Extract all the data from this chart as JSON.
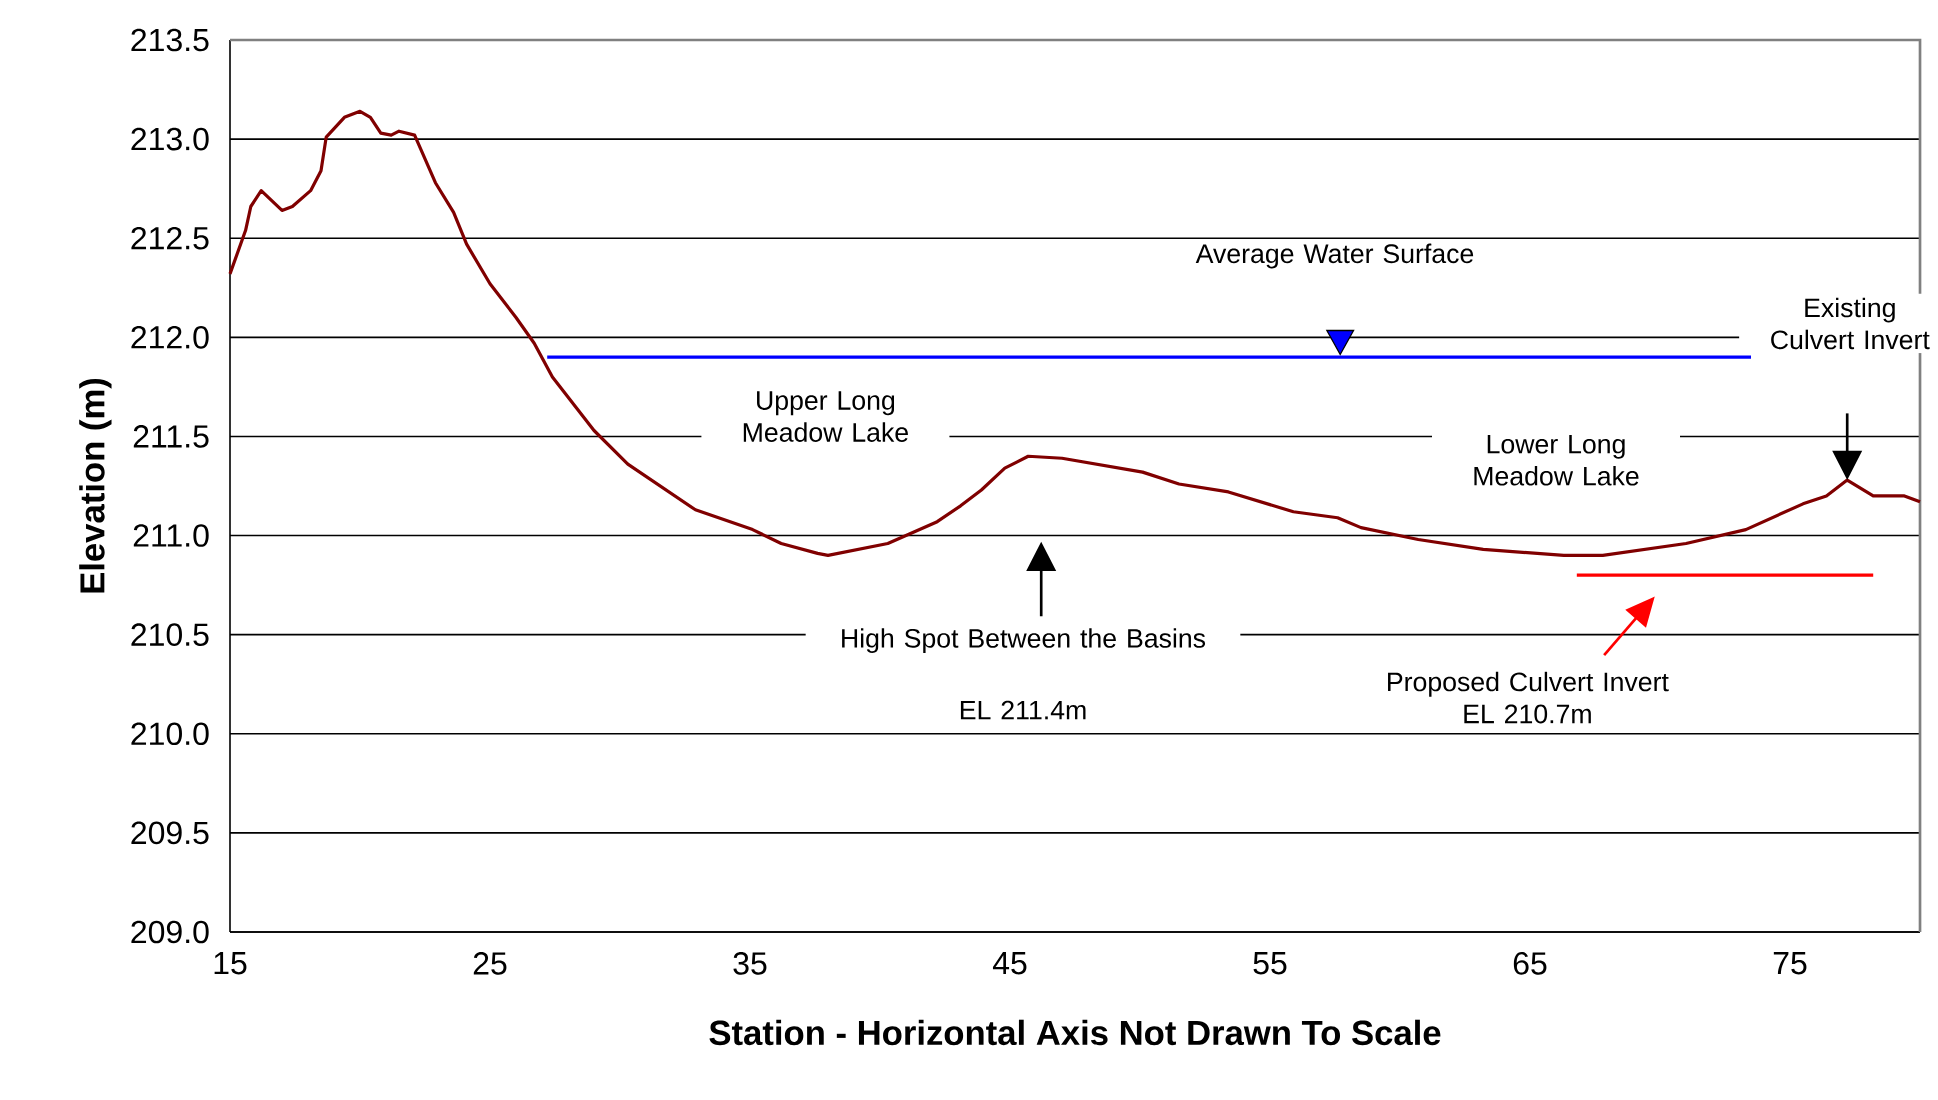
{
  "chart_data": {
    "type": "line",
    "xlabel": "Station - Horizontal Axis Not Drawn To Scale",
    "ylabel": "Elevation (m)",
    "xlim": [
      15,
      80
    ],
    "xticks": [
      15,
      25,
      35,
      45,
      55,
      65,
      75
    ],
    "ylim": [
      209,
      213.5
    ],
    "yticks": [
      {
        "value": 209,
        "label": "209.0"
      },
      {
        "value": 209.5,
        "label": "209.5"
      },
      {
        "value": 210,
        "label": "210.0"
      },
      {
        "value": 210.5,
        "label": "210.5"
      },
      {
        "value": 211,
        "label": "211.0"
      },
      {
        "value": 211.5,
        "label": "211.5"
      },
      {
        "value": 212,
        "label": "212.0"
      },
      {
        "value": 212.5,
        "label": "212.5"
      },
      {
        "value": 213,
        "label": "213.0"
      },
      {
        "value": 213.5,
        "label": "213.5"
      }
    ],
    "grid": "y",
    "marker": "none",
    "line_style": "solid",
    "series": [
      {
        "color": "#800000",
        "x": [
          15,
          15.6,
          15.8,
          16.2,
          17.0,
          17.4,
          18.1,
          18.5,
          18.7,
          19.4,
          20.0,
          20.4,
          20.8,
          21.2,
          21.5,
          22.1,
          22.9,
          23.6,
          24.1,
          25.0,
          26.0,
          26.7,
          27.4,
          29.0,
          30.3,
          32.9,
          35.1,
          36.2,
          37.6,
          38.0,
          40.3,
          42.2,
          43.1,
          43.9,
          44.8,
          45.7,
          47.0,
          50.1,
          51.5,
          53.4,
          55.9,
          57.6,
          58.5,
          60.7,
          63.2,
          66.3,
          67.8,
          69.4,
          71.0,
          73.3,
          75.5,
          76.4,
          77.2,
          78.2,
          79.4,
          80
        ],
        "values": [
          212.32,
          212.54,
          212.66,
          212.74,
          212.64,
          212.66,
          212.74,
          212.84,
          213.01,
          213.11,
          213.14,
          213.11,
          213.03,
          213.02,
          213.04,
          213.02,
          212.78,
          212.63,
          212.47,
          212.27,
          212.1,
          211.97,
          211.8,
          211.53,
          211.36,
          211.13,
          211.03,
          210.96,
          210.91,
          210.9,
          210.96,
          211.07,
          211.15,
          211.23,
          211.34,
          211.4,
          211.39,
          211.32,
          211.26,
          211.22,
          211.12,
          211.09,
          211.04,
          210.98,
          210.93,
          210.9,
          210.9,
          210.93,
          210.96,
          211.03,
          211.16,
          211.2,
          211.28,
          211.2,
          211.2,
          211.17
        ]
      },
      {
        "color": "#0000ff",
        "x": [
          27.2,
          73.5
        ],
        "values": [
          211.9,
          211.9
        ]
      },
      {
        "color": "#ff0000",
        "x": [
          66.8,
          78.2
        ],
        "values": [
          210.8,
          210.8
        ]
      }
    ],
    "annotations": [
      "Average Water Surface",
      "Existing Culvert Invert",
      "Upper Long Meadow Lake",
      "Lower Long Meadow Lake",
      "High Spot Between the Basins",
      "EL 211.4m",
      "Proposed Culvert Invert",
      "EL 210.7m"
    ]
  }
}
